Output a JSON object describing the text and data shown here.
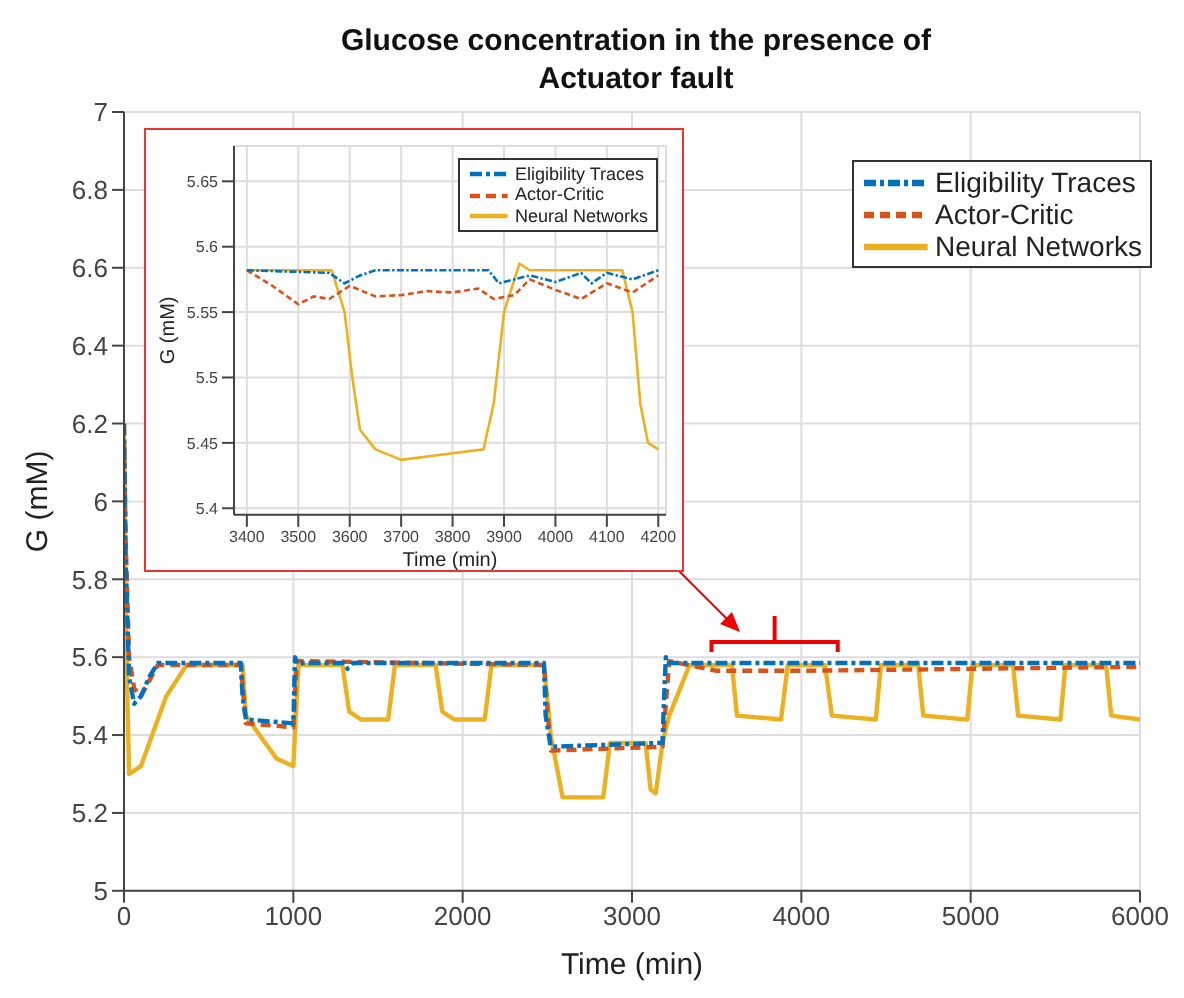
{
  "chart_data": [
    {
      "type": "line",
      "title": "Glucose concentration in the presence of Actuator fault",
      "xlabel": "Time (min)",
      "ylabel": "G (mM)",
      "xlim": [
        0,
        6000
      ],
      "xticks": [
        0,
        1000,
        2000,
        3000,
        4000,
        5000,
        6000
      ],
      "ylim": [
        5,
        7
      ],
      "yticks": [
        5,
        5.2,
        5.4,
        5.6,
        5.8,
        6,
        6.2,
        6.4,
        6.6,
        6.8,
        7
      ],
      "grid": true,
      "legend": "top right",
      "series": [
        {
          "name": "Eligibility Traces",
          "color": "#0072bd",
          "line_style": "dashdot",
          "x": [
            0,
            10,
            30,
            60,
            100,
            150,
            200,
            690,
            700,
            720,
            1000,
            1010,
            1020,
            1300,
            1320,
            1350,
            2480,
            2490,
            2520,
            3180,
            3190,
            3200,
            3220,
            6000
          ],
          "values": [
            6.2,
            5.85,
            5.55,
            5.48,
            5.5,
            5.55,
            5.585,
            5.585,
            5.5,
            5.44,
            5.43,
            5.6,
            5.585,
            5.585,
            5.57,
            5.585,
            5.585,
            5.45,
            5.37,
            5.38,
            5.5,
            5.6,
            5.585,
            5.585
          ]
        },
        {
          "name": "Actor-Critic",
          "color": "#d95319",
          "line_style": "dashed",
          "x": [
            0,
            10,
            30,
            60,
            100,
            200,
            690,
            720,
            1000,
            1020,
            2480,
            2520,
            3180,
            3220,
            3500,
            4000,
            6000
          ],
          "values": [
            6.15,
            5.9,
            5.6,
            5.52,
            5.5,
            5.58,
            5.58,
            5.43,
            5.42,
            5.59,
            5.58,
            5.36,
            5.37,
            5.59,
            5.565,
            5.565,
            5.575
          ]
        },
        {
          "name": "Neural Networks",
          "color": "#edb120",
          "line_style": "solid",
          "x": [
            0,
            10,
            30,
            100,
            150,
            250,
            370,
            700,
            720,
            800,
            900,
            1000,
            1030,
            1290,
            1330,
            1400,
            1560,
            1600,
            1840,
            1880,
            1950,
            2130,
            2170,
            2480,
            2520,
            2590,
            2830,
            2870,
            3080,
            3110,
            3140,
            3180,
            3220,
            3340,
            3590,
            3620,
            3880,
            3920,
            4140,
            4180,
            4440,
            4470,
            4690,
            4720,
            4980,
            5010,
            5250,
            5280,
            5530,
            5560,
            5800,
            5830,
            6000
          ],
          "values": [
            6.2,
            5.7,
            5.3,
            5.32,
            5.38,
            5.5,
            5.58,
            5.58,
            5.45,
            5.4,
            5.34,
            5.32,
            5.58,
            5.58,
            5.46,
            5.44,
            5.44,
            5.58,
            5.58,
            5.46,
            5.44,
            5.44,
            5.58,
            5.58,
            5.4,
            5.24,
            5.24,
            5.38,
            5.38,
            5.26,
            5.25,
            5.38,
            5.45,
            5.58,
            5.58,
            5.45,
            5.44,
            5.58,
            5.58,
            5.45,
            5.44,
            5.58,
            5.58,
            5.45,
            5.44,
            5.58,
            5.58,
            5.45,
            5.44,
            5.58,
            5.58,
            5.45,
            5.44
          ]
        }
      ]
    },
    {
      "type": "line",
      "xlabel": "Time (min)",
      "ylabel": "G (mM)",
      "xlim": [
        3375,
        4215
      ],
      "xticks": [
        3400,
        3500,
        3600,
        3700,
        3800,
        3900,
        4000,
        4100,
        4200
      ],
      "ylim": [
        5.395,
        5.677
      ],
      "yticks": [
        5.4,
        5.45,
        5.5,
        5.55,
        5.6,
        5.65
      ],
      "grid": true,
      "legend": "top right",
      "series": [
        {
          "name": "Eligibility Traces",
          "color": "#0072bd",
          "line_style": "dashdot",
          "x": [
            3400,
            3560,
            3590,
            3620,
            3650,
            3870,
            3890,
            3950,
            4000,
            4050,
            4070,
            4100,
            4150,
            4200
          ],
          "values": [
            5.582,
            5.58,
            5.572,
            5.578,
            5.582,
            5.582,
            5.572,
            5.578,
            5.573,
            5.58,
            5.572,
            5.58,
            5.575,
            5.582
          ]
        },
        {
          "name": "Actor-Critic",
          "color": "#d95319",
          "line_style": "dashed",
          "x": [
            3400,
            3450,
            3500,
            3530,
            3560,
            3600,
            3650,
            3700,
            3750,
            3800,
            3850,
            3880,
            3920,
            3950,
            4000,
            4050,
            4100,
            4150,
            4200
          ],
          "values": [
            5.582,
            5.57,
            5.556,
            5.562,
            5.56,
            5.57,
            5.562,
            5.563,
            5.566,
            5.565,
            5.568,
            5.56,
            5.563,
            5.575,
            5.567,
            5.56,
            5.572,
            5.565,
            5.578
          ]
        },
        {
          "name": "Neural Networks",
          "color": "#edb120",
          "line_style": "solid",
          "x": [
            3400,
            3565,
            3590,
            3605,
            3620,
            3650,
            3700,
            3800,
            3860,
            3880,
            3900,
            3930,
            3950,
            4130,
            4150,
            4165,
            4180,
            4200
          ],
          "values": [
            5.582,
            5.582,
            5.55,
            5.5,
            5.46,
            5.445,
            5.437,
            5.442,
            5.445,
            5.48,
            5.55,
            5.587,
            5.582,
            5.582,
            5.55,
            5.48,
            5.45,
            5.445
          ]
        }
      ]
    }
  ]
}
